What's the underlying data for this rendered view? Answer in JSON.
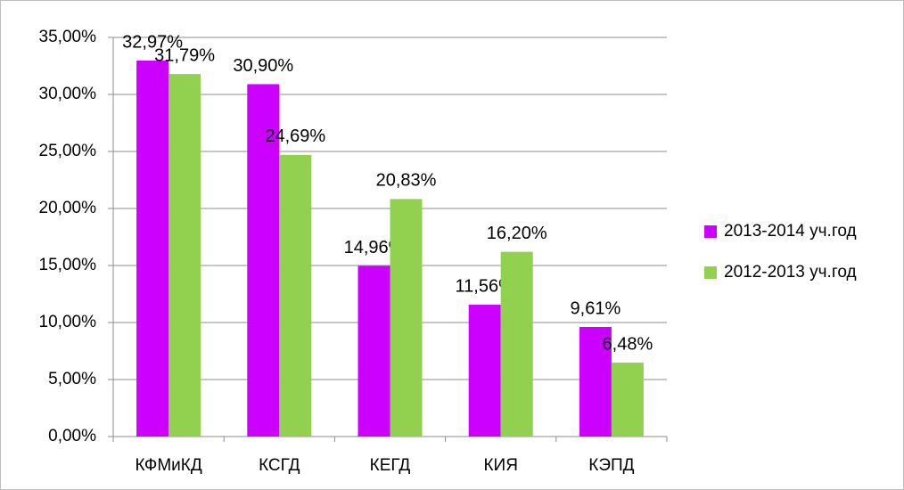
{
  "chart_data": {
    "type": "bar",
    "categories": [
      "КФМиКД",
      "КСГД",
      "КЕГД",
      "КИЯ",
      "КЭПД"
    ],
    "series": [
      {
        "name": "2013-2014 уч.год",
        "color": "#cc00ff",
        "values": [
          32.97,
          30.9,
          14.96,
          11.56,
          9.61
        ],
        "value_labels": [
          "32,97%",
          "30,90%",
          "14,96%",
          "11,56%",
          "9,61%"
        ]
      },
      {
        "name": "2012-2013 уч.год",
        "color": "#92d050",
        "values": [
          31.79,
          24.69,
          20.83,
          16.2,
          6.48
        ],
        "value_labels": [
          "31,79%",
          "24,69%",
          "20,83%",
          "16,20%",
          "6,48%"
        ]
      }
    ],
    "ylim": [
      0,
      35
    ],
    "yticks": [
      {
        "value": 0,
        "label": "0,00%"
      },
      {
        "value": 5,
        "label": "5,00%"
      },
      {
        "value": 10,
        "label": "10,00%"
      },
      {
        "value": 15,
        "label": "15,00%"
      },
      {
        "value": 20,
        "label": "20,00%"
      },
      {
        "value": 25,
        "label": "25,00%"
      },
      {
        "value": 30,
        "label": "30,00%"
      },
      {
        "value": 35,
        "label": "35,00%"
      }
    ],
    "grid": true,
    "legend": "right"
  }
}
